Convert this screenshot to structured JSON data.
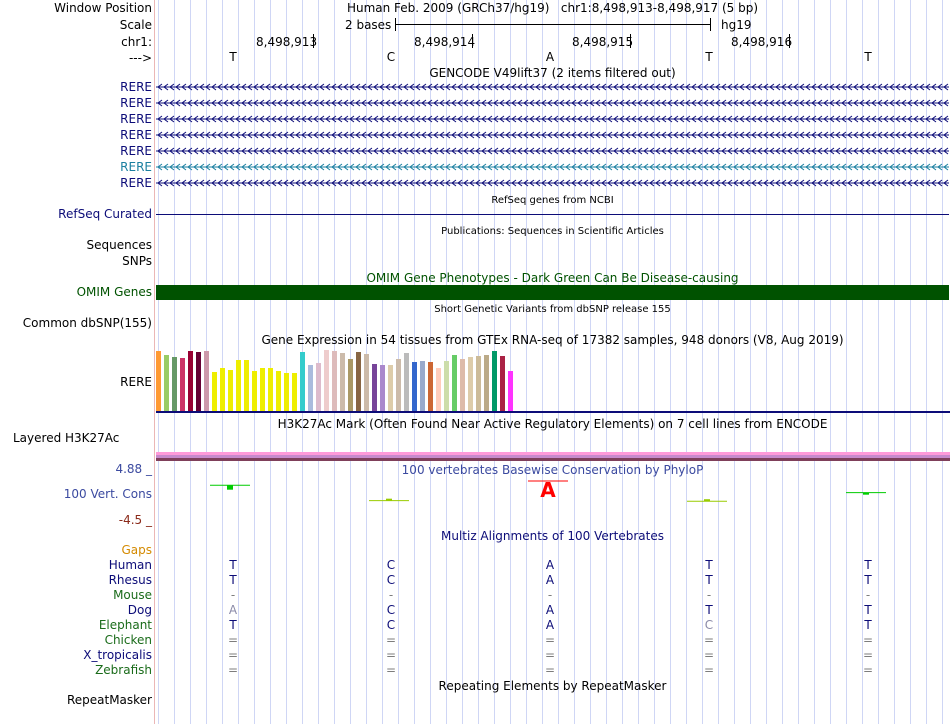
{
  "header": {
    "window_position_label": "Window Position",
    "scale_label": "Scale",
    "chrom_label": "chr1:",
    "strand_label": "--->",
    "assembly_title": "Human Feb. 2009 (GRCh37/hg19)   chr1:8,498,913-8,498,917 (5 bp)",
    "scale_text": "2 bases",
    "assembly_short": "hg19",
    "positions": [
      "8,498,913",
      "8,498,914",
      "8,498,915",
      "8,498,916"
    ],
    "bases": [
      "T",
      "C",
      "A",
      "T",
      "T"
    ]
  },
  "gencode": {
    "title": "GENCODE V49lift37 (2 items filtered out)",
    "transcripts": [
      {
        "label": "RERE",
        "color": "#0c0c78"
      },
      {
        "label": "RERE",
        "color": "#0c0c78"
      },
      {
        "label": "RERE",
        "color": "#0c0c78"
      },
      {
        "label": "RERE",
        "color": "#0c0c78"
      },
      {
        "label": "RERE",
        "color": "#0c0c78"
      },
      {
        "label": "RERE",
        "color": "#1a7fa0"
      },
      {
        "label": "RERE",
        "color": "#0c0c78"
      }
    ]
  },
  "refseq": {
    "title": "RefSeq genes from NCBI",
    "label": "RefSeq Curated",
    "color": "#0c0c78"
  },
  "publications": {
    "title": "Publications: Sequences in Scientific Articles",
    "labels": [
      "Sequences",
      "SNPs"
    ]
  },
  "omim": {
    "title": "OMIM Gene Phenotypes - Dark Green Can Be Disease-causing",
    "label": "OMIM Genes",
    "color": "#005200"
  },
  "dbsnp": {
    "title": "Short Genetic Variants from dbSNP release 155",
    "label": "Common dbSNP(155)"
  },
  "gtex": {
    "title": "Gene Expression in 54 tissues from GTEx RNA-seq of 17382 samples, 948 donors (V8, Aug 2019)",
    "label": "RERE",
    "bars": [
      {
        "color": "#ff9933",
        "value": 0.98
      },
      {
        "color": "#99cc66",
        "value": 0.92
      },
      {
        "color": "#669966",
        "value": 0.88
      },
      {
        "color": "#cc3366",
        "value": 0.87
      },
      {
        "color": "#990033",
        "value": 0.98
      },
      {
        "color": "#660033",
        "value": 0.97
      },
      {
        "color": "#cc99aa",
        "value": 0.99
      },
      {
        "color": "#eeee00",
        "value": 0.64
      },
      {
        "color": "#eeee00",
        "value": 0.71
      },
      {
        "color": "#eeee00",
        "value": 0.67
      },
      {
        "color": "#eeee00",
        "value": 0.84
      },
      {
        "color": "#eeee00",
        "value": 0.83
      },
      {
        "color": "#eeee00",
        "value": 0.65
      },
      {
        "color": "#eeee00",
        "value": 0.7
      },
      {
        "color": "#eeee00",
        "value": 0.7
      },
      {
        "color": "#eeee00",
        "value": 0.66
      },
      {
        "color": "#eeee00",
        "value": 0.63
      },
      {
        "color": "#eeee00",
        "value": 0.63
      },
      {
        "color": "#33cccc",
        "value": 0.97
      },
      {
        "color": "#aabbdd",
        "value": 0.75
      },
      {
        "color": "#ddbbcc",
        "value": 0.78
      },
      {
        "color": "#eecccc",
        "value": 1.0
      },
      {
        "color": "#ddbbbb",
        "value": 0.98
      },
      {
        "color": "#ccbbaa",
        "value": 0.95
      },
      {
        "color": "#aa9966",
        "value": 0.85
      },
      {
        "color": "#886644",
        "value": 0.97
      },
      {
        "color": "#ccbbaa",
        "value": 0.93
      },
      {
        "color": "#774499",
        "value": 0.77
      },
      {
        "color": "#aa88cc",
        "value": 0.75
      },
      {
        "color": "#ddccaa",
        "value": 0.75
      },
      {
        "color": "#ccbbaa",
        "value": 0.85
      },
      {
        "color": "#bbbbbb",
        "value": 0.95
      },
      {
        "color": "#3366cc",
        "value": 0.8
      },
      {
        "color": "#99aacc",
        "value": 0.82
      },
      {
        "color": "#cc6633",
        "value": 0.8
      },
      {
        "color": "#ffccbb",
        "value": 0.7
      },
      {
        "color": "#ccddaa",
        "value": 0.82
      },
      {
        "color": "#66cc66",
        "value": 0.92
      },
      {
        "color": "#ddbbaa",
        "value": 0.85
      },
      {
        "color": "#ddccaa",
        "value": 0.88
      },
      {
        "color": "#ccbb99",
        "value": 0.9
      },
      {
        "color": "#bbaa88",
        "value": 0.92
      },
      {
        "color": "#009966",
        "value": 0.98
      },
      {
        "color": "#aa2244",
        "value": 0.9
      },
      {
        "color": "#ff33ff",
        "value": 0.65
      }
    ]
  },
  "h3k27ac": {
    "title": "H3K27Ac Mark (Often Found Near Active Regulatory Elements) on 7 cell lines from ENCODE",
    "label": "Layered H3K27Ac"
  },
  "conservation": {
    "title": "100 vertebrates Basewise Conservation by PhyloP",
    "label": "100 Vert. Cons",
    "y_max": "4.88 _",
    "y_min": "-4.5 _",
    "values": [
      2.4,
      -0.5,
      3.2,
      -0.6,
      1.0
    ]
  },
  "multiz": {
    "title": "Multiz Alignments of 100 Vertebrates",
    "gaps_label": "Gaps",
    "species": [
      {
        "name": "Human",
        "color": "#0c0c78",
        "bases": [
          "T",
          "C",
          "A",
          "T",
          "T"
        ],
        "base_color": "#0c0c78"
      },
      {
        "name": "Rhesus",
        "color": "#0c0c78",
        "bases": [
          "T",
          "C",
          "A",
          "T",
          "T"
        ],
        "base_color": "#0c0c78"
      },
      {
        "name": "Mouse",
        "color": "#1a6b1a",
        "bases": [
          "-",
          "-",
          "-",
          "-",
          "-"
        ],
        "base_color": "#7d7d7d"
      },
      {
        "name": "Dog",
        "color": "#0c0c78",
        "bases": [
          "A",
          "C",
          "A",
          "T",
          "T"
        ],
        "base_color": "#0c0c78"
      },
      {
        "name": "Elephant",
        "color": "#1a6b1a",
        "bases": [
          "T",
          "C",
          "A",
          "C",
          "T"
        ],
        "base_color": "#0c0c78"
      },
      {
        "name": "Chicken",
        "color": "#1a6b1a",
        "bases": [
          "=",
          "=",
          "=",
          "=",
          "="
        ],
        "base_color": "#7d7d7d"
      },
      {
        "name": "X_tropicalis",
        "color": "#0c0c78",
        "bases": [
          "=",
          "=",
          "=",
          "=",
          "="
        ],
        "base_color": "#7d7d7d"
      },
      {
        "name": "Zebrafish",
        "color": "#1a6b1a",
        "bases": [
          "=",
          "=",
          "=",
          "=",
          "="
        ],
        "base_color": "#7d7d7d"
      }
    ]
  },
  "repeatmasker": {
    "title": "Repeating Elements by RepeatMasker",
    "label": "RepeatMasker"
  }
}
